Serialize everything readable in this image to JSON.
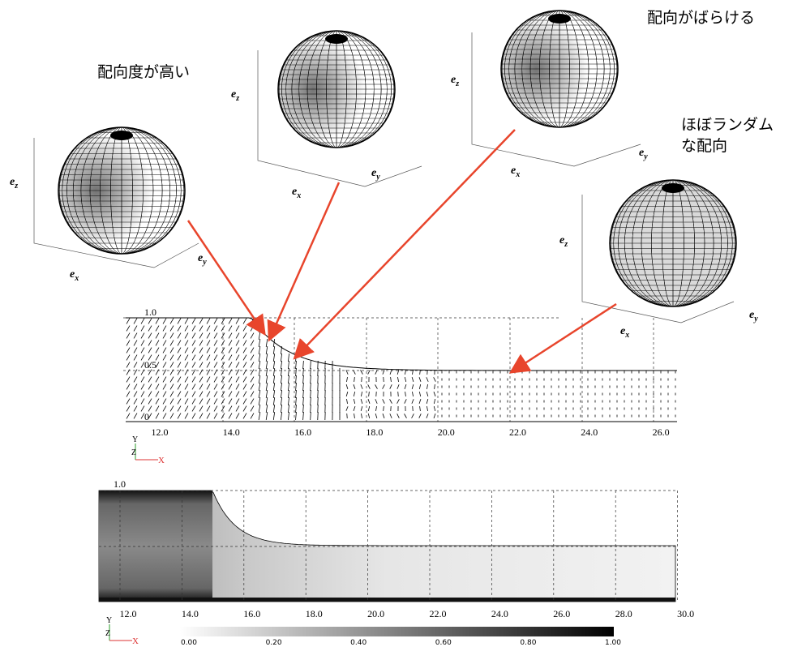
{
  "annotations": {
    "high": "配向度が高い",
    "spread": "配向がばらける",
    "random": [
      "ほぼランダム",
      "な配向"
    ]
  },
  "sphere_axes": {
    "symbol": "e",
    "x": "x",
    "y": "y",
    "z": "z"
  },
  "top_plot": {
    "yticks": [
      "1.0",
      "0.5",
      "0"
    ],
    "xticks": [
      "12.0",
      "14.0",
      "16.0",
      "18.0",
      "20.0",
      "22.0",
      "24.0",
      "26.0"
    ],
    "triad": [
      "Y",
      "Z",
      "X"
    ]
  },
  "bottom_plot": {
    "label": "1.0",
    "xticks": [
      "12.0",
      "14.0",
      "16.0",
      "18.0",
      "20.0",
      "22.0",
      "24.0",
      "26.0",
      "28.0",
      "30.0"
    ],
    "triad": [
      "Y",
      "Z",
      "X"
    ],
    "colorbar": [
      "0.00",
      "0.20",
      "0.40",
      "0.60",
      "0.80",
      "1.00"
    ]
  }
}
